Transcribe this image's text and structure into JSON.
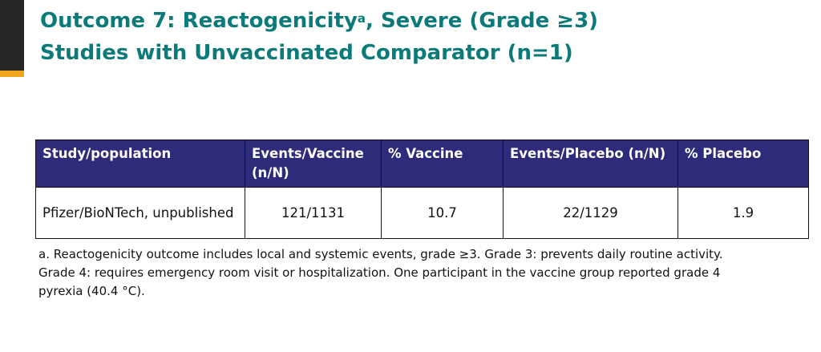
{
  "title": {
    "line1_main": "Outcome 7: Reactogenicity",
    "line1_sup": "a",
    "line1_rest": ", Severe (Grade ≥3)",
    "line2": "Studies with Unvaccinated Comparator (n=1)"
  },
  "table": {
    "headers": [
      "Study/population",
      "Events/Vaccine (n/N)",
      "% Vaccine",
      "Events/Placebo (n/N)",
      "% Placebo"
    ],
    "rows": [
      [
        "Pfizer/BioNTech, unpublished",
        "121/1131",
        "10.7",
        "22/1129",
        "1.9"
      ]
    ]
  },
  "footnote": {
    "line1": "a. Reactogenicity outcome includes local and systemic events, grade ≥3. Grade 3: prevents daily routine activity.",
    "line2": "Grade 4: requires emergency room visit or hospitalization. One participant in the vaccine group reported grade 4",
    "line3": "pyrexia (40.4 °C)."
  },
  "colors": {
    "title": "#0d7a7a",
    "header_bg": "#2e2b7a",
    "accent_gold": "#f0a51e",
    "accent_dark": "#262626"
  }
}
